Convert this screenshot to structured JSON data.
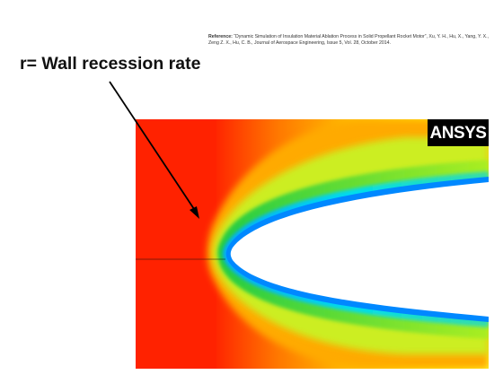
{
  "reference": {
    "label": "Reference:",
    "text": "“Dynamic Simulation of Insulation Material Ablation Process in Solid Propellant Rocket Motor”, Xu, Y. H., Hu, X., Yang, Y. X., Zeng Z. X., Hu, C. B., Journal of Aerospace Engineering, Issue 5, Vol. 28, October 2014."
  },
  "headline": "r= Wall recession rate",
  "logo_text": "ANSYS",
  "colors": {
    "background": "#ffffff",
    "field_red": "#ff2200",
    "field_orange": "#ff9900",
    "field_yellow": "#ffee00",
    "field_green": "#33cc33",
    "field_cyan": "#00dddd",
    "field_blue": "#0066ff",
    "logo_bg": "#000000",
    "logo_fg": "#ffffff",
    "arrow": "#000000"
  }
}
